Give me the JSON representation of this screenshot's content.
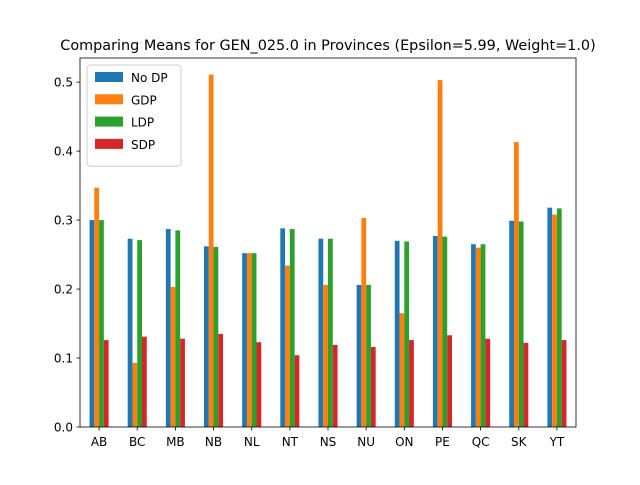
{
  "chart_data": {
    "type": "bar",
    "title": "Comparing Means for GEN_025.0 in Provinces (Epsilon=5.99, Weight=1.0)",
    "xlabel": "",
    "ylabel": "",
    "categories": [
      "AB",
      "BC",
      "MB",
      "NB",
      "NL",
      "NT",
      "NS",
      "NU",
      "ON",
      "PE",
      "QC",
      "SK",
      "YT"
    ],
    "ylim": [
      0,
      0.535
    ],
    "yticks": [
      0.0,
      0.1,
      0.2,
      0.3,
      0.4,
      0.5
    ],
    "ytick_labels": [
      "0.0",
      "0.1",
      "0.2",
      "0.3",
      "0.4",
      "0.5"
    ],
    "legend_position": "top-left",
    "grid": false,
    "series": [
      {
        "name": "No DP",
        "color": "#1f77b4",
        "values": [
          0.3,
          0.273,
          0.287,
          0.262,
          0.252,
          0.288,
          0.273,
          0.206,
          0.27,
          0.277,
          0.265,
          0.299,
          0.318
        ]
      },
      {
        "name": "GDP",
        "color": "#ff7f0e",
        "values": [
          0.347,
          0.093,
          0.203,
          0.511,
          0.252,
          0.234,
          0.206,
          0.303,
          0.165,
          0.503,
          0.26,
          0.413,
          0.308
        ]
      },
      {
        "name": "LDP",
        "color": "#2ca02c",
        "values": [
          0.3,
          0.271,
          0.285,
          0.261,
          0.252,
          0.287,
          0.273,
          0.206,
          0.269,
          0.276,
          0.265,
          0.298,
          0.317
        ]
      },
      {
        "name": "SDP",
        "color": "#d62728",
        "values": [
          0.126,
          0.131,
          0.128,
          0.135,
          0.123,
          0.104,
          0.119,
          0.116,
          0.126,
          0.133,
          0.128,
          0.122,
          0.126
        ]
      }
    ]
  }
}
